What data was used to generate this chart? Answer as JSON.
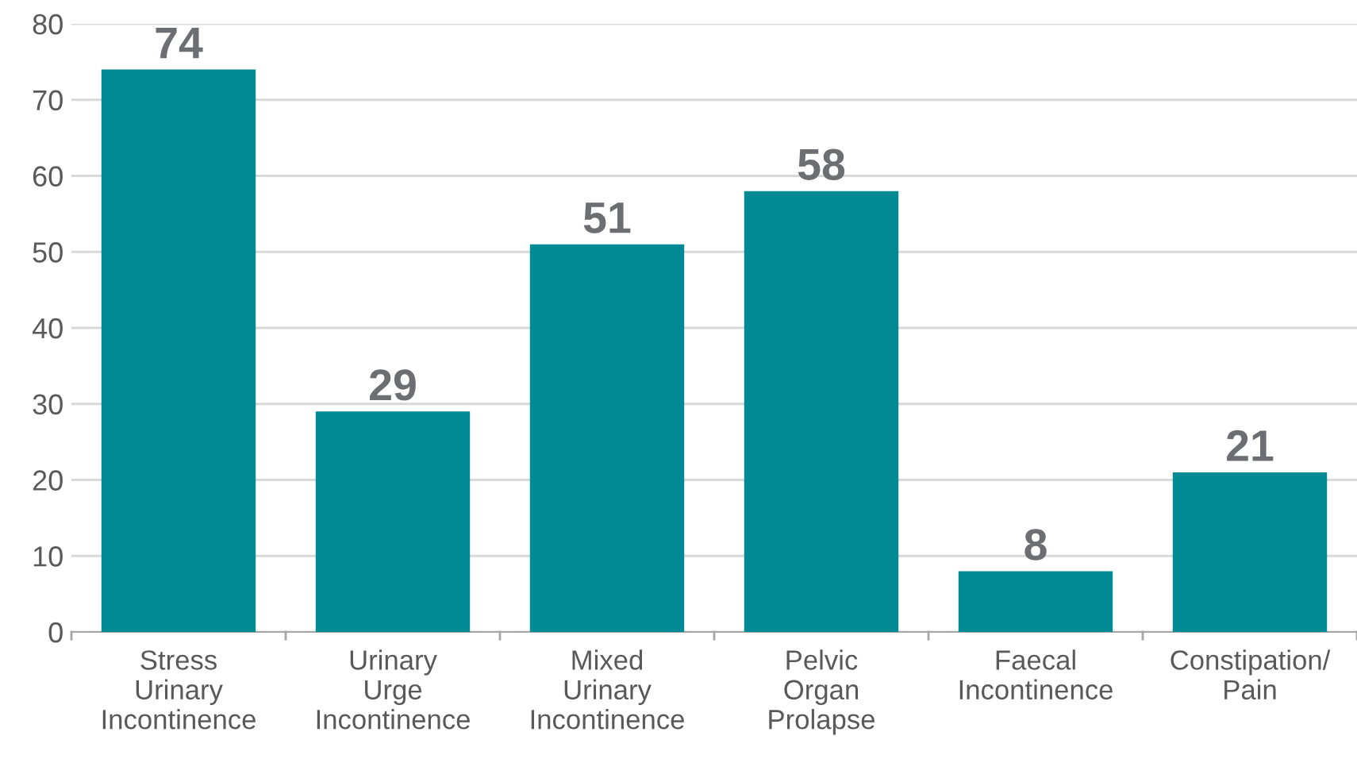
{
  "chart_data": {
    "type": "bar",
    "categories": [
      "Stress\nUrinary\nIncontinence",
      "Urinary\nUrge\nIncontinence",
      "Mixed\nUrinary\nIncontinence",
      "Pelvic\nOrgan\nProlapse",
      "Faecal\nIncontinence",
      "Constipation/\nPain"
    ],
    "values": [
      74,
      29,
      51,
      58,
      8,
      21
    ],
    "color": "#008b94",
    "ylim": [
      0,
      80
    ],
    "yticks": [
      0,
      10,
      20,
      30,
      40,
      50,
      60,
      70,
      80
    ],
    "grid": "y",
    "data_labels": true
  }
}
